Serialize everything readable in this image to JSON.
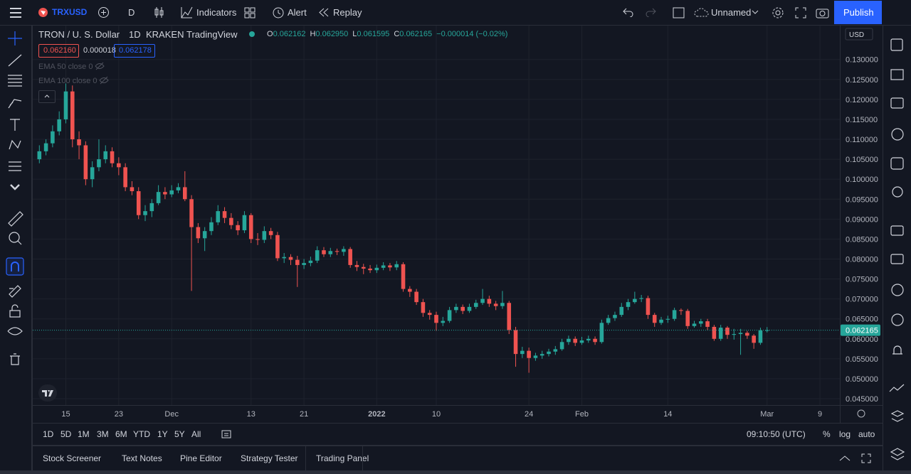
{
  "toolbar": {
    "symbol": "TRXUSD",
    "interval": "D",
    "indicators": "Indicators",
    "alert": "Alert",
    "replay": "Replay",
    "layout": "Unnamed",
    "publish": "Publish"
  },
  "legend": {
    "name": "TRON / U. S. Dollar",
    "interval": "1D",
    "exchange": "KRAKEN",
    "source": "TradingView",
    "ohlc": [
      {
        "key": "O",
        "value": "0.062162"
      },
      {
        "key": "H",
        "value": "0.062950"
      },
      {
        "key": "L",
        "value": "0.061595"
      },
      {
        "key": "C",
        "value": "0.062165"
      }
    ],
    "change": "−0.000014 (−0.02%)",
    "bid": "0.062160",
    "spread": "0.000018",
    "ask": "0.062178",
    "indicators": [
      "EMA 50 close 0",
      "EMA 100 close 0"
    ]
  },
  "chart_data": {
    "type": "candlestick",
    "up_color": "#26a69a",
    "down_color": "#ef5350",
    "grid": true,
    "x": [
      "2021-11-11",
      "2021-11-12",
      "2021-11-13",
      "2021-11-14",
      "2021-11-15",
      "2021-11-16",
      "2021-11-17",
      "2021-11-18",
      "2021-11-19",
      "2021-11-20",
      "2021-11-21",
      "2021-11-22",
      "2021-11-23",
      "2021-11-24",
      "2021-11-25",
      "2021-11-26",
      "2021-11-27",
      "2021-11-28",
      "2021-11-29",
      "2021-11-30",
      "2021-12-01",
      "2021-12-02",
      "2021-12-03",
      "2021-12-04",
      "2021-12-05",
      "2021-12-06",
      "2021-12-07",
      "2021-12-08",
      "2021-12-09",
      "2021-12-10",
      "2021-12-11",
      "2021-12-12",
      "2021-12-13",
      "2021-12-14",
      "2021-12-15",
      "2021-12-16",
      "2021-12-17",
      "2021-12-18",
      "2021-12-19",
      "2021-12-20",
      "2021-12-21",
      "2021-12-22",
      "2021-12-23",
      "2021-12-24",
      "2021-12-25",
      "2021-12-26",
      "2021-12-27",
      "2021-12-28",
      "2021-12-29",
      "2021-12-30",
      "2021-12-31",
      "2022-01-01",
      "2022-01-02",
      "2022-01-03",
      "2022-01-04",
      "2022-01-05",
      "2022-01-06",
      "2022-01-07",
      "2022-01-08",
      "2022-01-09",
      "2022-01-10",
      "2022-01-11",
      "2022-01-12",
      "2022-01-13",
      "2022-01-14",
      "2022-01-15",
      "2022-01-16",
      "2022-01-17",
      "2022-01-18",
      "2022-01-19",
      "2022-01-20",
      "2022-01-21",
      "2022-01-22",
      "2022-01-23",
      "2022-01-24",
      "2022-01-25",
      "2022-01-26",
      "2022-01-27",
      "2022-01-28",
      "2022-01-29",
      "2022-01-30",
      "2022-01-31",
      "2022-02-01",
      "2022-02-02",
      "2022-02-03",
      "2022-02-04",
      "2022-02-05",
      "2022-02-06",
      "2022-02-07",
      "2022-02-08",
      "2022-02-09",
      "2022-02-10",
      "2022-02-11",
      "2022-02-12",
      "2022-02-13",
      "2022-02-14",
      "2022-02-15",
      "2022-02-16",
      "2022-02-17",
      "2022-02-18",
      "2022-02-19",
      "2022-02-20",
      "2022-02-21",
      "2022-02-22",
      "2022-02-23",
      "2022-02-24",
      "2022-02-25",
      "2022-02-26",
      "2022-02-27",
      "2022-02-28",
      "2022-03-01"
    ],
    "open": [
      0.105,
      0.107,
      0.109,
      0.112,
      0.115,
      0.122,
      0.11,
      0.1085,
      0.1,
      0.103,
      0.105,
      0.107,
      0.104,
      0.103,
      0.098,
      0.097,
      0.091,
      0.092,
      0.094,
      0.0968,
      0.0962,
      0.0972,
      0.098,
      0.095,
      0.088,
      0.0852,
      0.087,
      0.0892,
      0.092,
      0.0903,
      0.0885,
      0.0872,
      0.091,
      0.085,
      0.0848,
      0.087,
      0.086,
      0.0802,
      0.0805,
      0.0798,
      0.0785,
      0.079,
      0.0796,
      0.0822,
      0.0812,
      0.082,
      0.0818,
      0.0825,
      0.0785,
      0.078,
      0.0776,
      0.0772,
      0.0778,
      0.0784,
      0.0779,
      0.0787,
      0.0725,
      0.0718,
      0.0692,
      0.0665,
      0.066,
      0.064,
      0.0645,
      0.0672,
      0.068,
      0.067,
      0.068,
      0.069,
      0.07,
      0.0688,
      0.0682,
      0.069,
      0.0622,
      0.0562,
      0.057,
      0.0552,
      0.0558,
      0.0562,
      0.0568,
      0.0574,
      0.0592,
      0.06,
      0.059,
      0.0596,
      0.06,
      0.0592,
      0.064,
      0.0652,
      0.066,
      0.068,
      0.0692,
      0.07,
      0.0702,
      0.066,
      0.064,
      0.0648,
      0.065,
      0.0672,
      0.067,
      0.0632,
      0.0638,
      0.0644,
      0.063,
      0.06,
      0.0628,
      0.061,
      0.0612,
      0.0615,
      0.0608,
      0.059,
      0.062162
    ],
    "high": [
      0.1085,
      0.11,
      0.1135,
      0.117,
      0.124,
      0.1235,
      0.112,
      0.1095,
      0.1045,
      0.11,
      0.1085,
      0.108,
      0.1055,
      0.104,
      0.0995,
      0.098,
      0.0935,
      0.095,
      0.0985,
      0.098,
      0.0985,
      0.099,
      0.102,
      0.096,
      0.089,
      0.088,
      0.0905,
      0.0935,
      0.093,
      0.0915,
      0.0895,
      0.092,
      0.0915,
      0.0865,
      0.0882,
      0.0878,
      0.0868,
      0.0815,
      0.0812,
      0.0808,
      0.08,
      0.0806,
      0.0832,
      0.083,
      0.0828,
      0.0826,
      0.0832,
      0.083,
      0.0795,
      0.0788,
      0.0785,
      0.0786,
      0.0792,
      0.079,
      0.0795,
      0.0792,
      0.0732,
      0.0725,
      0.07,
      0.0672,
      0.0668,
      0.0655,
      0.068,
      0.0688,
      0.0686,
      0.0688,
      0.0698,
      0.0725,
      0.0708,
      0.0695,
      0.072,
      0.0695,
      0.063,
      0.058,
      0.0578,
      0.0565,
      0.057,
      0.0575,
      0.0582,
      0.06,
      0.0608,
      0.0606,
      0.0605,
      0.0608,
      0.0606,
      0.0648,
      0.066,
      0.0668,
      0.069,
      0.07,
      0.0718,
      0.071,
      0.0708,
      0.0665,
      0.0655,
      0.0658,
      0.0678,
      0.0676,
      0.0675,
      0.0645,
      0.065,
      0.065,
      0.0635,
      0.0635,
      0.0632,
      0.0625,
      0.0625,
      0.062,
      0.0612,
      0.0628,
      0.06295
    ],
    "low": [
      0.104,
      0.106,
      0.108,
      0.111,
      0.114,
      0.108,
      0.105,
      0.0985,
      0.098,
      0.102,
      0.104,
      0.103,
      0.101,
      0.097,
      0.096,
      0.09,
      0.0895,
      0.0905,
      0.0935,
      0.095,
      0.0955,
      0.0965,
      0.0945,
      0.072,
      0.084,
      0.082,
      0.086,
      0.0885,
      0.089,
      0.0875,
      0.086,
      0.0865,
      0.084,
      0.0835,
      0.084,
      0.085,
      0.0795,
      0.079,
      0.0785,
      0.073,
      0.0775,
      0.0782,
      0.079,
      0.0805,
      0.0805,
      0.081,
      0.0808,
      0.0778,
      0.077,
      0.0762,
      0.0765,
      0.0765,
      0.0772,
      0.077,
      0.0772,
      0.0718,
      0.0705,
      0.0685,
      0.0655,
      0.0648,
      0.062,
      0.0632,
      0.064,
      0.0665,
      0.0662,
      0.0665,
      0.0675,
      0.0685,
      0.068,
      0.0672,
      0.0675,
      0.0612,
      0.053,
      0.0552,
      0.0515,
      0.0545,
      0.055,
      0.0556,
      0.056,
      0.057,
      0.0585,
      0.0582,
      0.0585,
      0.059,
      0.0585,
      0.0588,
      0.0635,
      0.0645,
      0.0655,
      0.0672,
      0.0688,
      0.0692,
      0.065,
      0.063,
      0.0635,
      0.064,
      0.0645,
      0.066,
      0.0625,
      0.0628,
      0.063,
      0.0622,
      0.0595,
      0.0595,
      0.06,
      0.0598,
      0.056,
      0.06,
      0.0575,
      0.0585,
      0.061595
    ],
    "close": [
      0.107,
      0.109,
      0.112,
      0.115,
      0.122,
      0.11,
      0.1085,
      0.1,
      0.103,
      0.105,
      0.107,
      0.104,
      0.103,
      0.098,
      0.097,
      0.091,
      0.092,
      0.094,
      0.0968,
      0.0962,
      0.0972,
      0.098,
      0.095,
      0.088,
      0.0852,
      0.087,
      0.0892,
      0.092,
      0.0903,
      0.0885,
      0.0872,
      0.091,
      0.085,
      0.0848,
      0.087,
      0.086,
      0.0802,
      0.0805,
      0.0798,
      0.0785,
      0.079,
      0.0796,
      0.0822,
      0.0812,
      0.082,
      0.0818,
      0.0825,
      0.0785,
      0.078,
      0.0776,
      0.0772,
      0.0778,
      0.0784,
      0.0779,
      0.0787,
      0.0725,
      0.0718,
      0.0692,
      0.0665,
      0.066,
      0.064,
      0.0645,
      0.0672,
      0.068,
      0.067,
      0.068,
      0.069,
      0.07,
      0.0688,
      0.0682,
      0.069,
      0.0622,
      0.0562,
      0.057,
      0.0552,
      0.0558,
      0.0562,
      0.0568,
      0.0574,
      0.0592,
      0.06,
      0.059,
      0.0596,
      0.06,
      0.0592,
      0.064,
      0.0652,
      0.066,
      0.068,
      0.0692,
      0.07,
      0.0702,
      0.066,
      0.064,
      0.0648,
      0.065,
      0.0672,
      0.067,
      0.0632,
      0.0638,
      0.0644,
      0.063,
      0.06,
      0.0628,
      0.061,
      0.0612,
      0.0615,
      0.0608,
      0.059,
      0.0621,
      0.062165
    ],
    "xlim": [
      "2021-11-10",
      "2022-03-12"
    ],
    "xticks": [
      {
        "value": "2021-11-15",
        "label": "15"
      },
      {
        "value": "2021-11-23",
        "label": "23"
      },
      {
        "value": "2021-12-01",
        "label": "Dec"
      },
      {
        "value": "2021-12-13",
        "label": "13"
      },
      {
        "value": "2021-12-21",
        "label": "21"
      },
      {
        "value": "2022-01-01",
        "label": "2022"
      },
      {
        "value": "2022-01-10",
        "label": "10"
      },
      {
        "value": "2022-01-24",
        "label": "24"
      },
      {
        "value": "2022-02-01",
        "label": "Feb"
      },
      {
        "value": "2022-02-14",
        "label": "14"
      },
      {
        "value": "2022-03-01",
        "label": "Mar"
      },
      {
        "value": "2022-03-09",
        "label": "9"
      }
    ],
    "ylim": [
      0.0434,
      0.1385
    ],
    "yticks": [
      {
        "value": 0.045,
        "label": "0.045000"
      },
      {
        "value": 0.05,
        "label": "0.050000"
      },
      {
        "value": 0.055,
        "label": "0.055000"
      },
      {
        "value": 0.06,
        "label": "0.060000"
      },
      {
        "value": 0.065,
        "label": "0.065000"
      },
      {
        "value": 0.07,
        "label": "0.070000"
      },
      {
        "value": 0.075,
        "label": "0.075000"
      },
      {
        "value": 0.08,
        "label": "0.080000"
      },
      {
        "value": 0.085,
        "label": "0.085000"
      },
      {
        "value": 0.09,
        "label": "0.090000"
      },
      {
        "value": 0.095,
        "label": "0.095000"
      },
      {
        "value": 0.1,
        "label": "0.100000"
      },
      {
        "value": 0.105,
        "label": "0.105000"
      },
      {
        "value": 0.11,
        "label": "0.110000"
      },
      {
        "value": 0.115,
        "label": "0.115000"
      },
      {
        "value": 0.12,
        "label": "0.120000"
      },
      {
        "value": 0.125,
        "label": "0.125000"
      },
      {
        "value": 0.13,
        "label": "0.130000"
      }
    ],
    "last_price": {
      "value": 0.062165,
      "label": "0.062165"
    }
  },
  "price_axis": {
    "currency": "USD"
  },
  "range_bar": {
    "ranges": [
      "1D",
      "5D",
      "1M",
      "3M",
      "6M",
      "YTD",
      "1Y",
      "5Y",
      "All"
    ],
    "clock": "09:10:50 (UTC)",
    "options": [
      "%",
      "log",
      "auto"
    ]
  },
  "bottom_tabs": [
    "Stock Screener",
    "Text Notes",
    "Pine Editor",
    "Strategy Tester",
    "Trading Panel"
  ]
}
